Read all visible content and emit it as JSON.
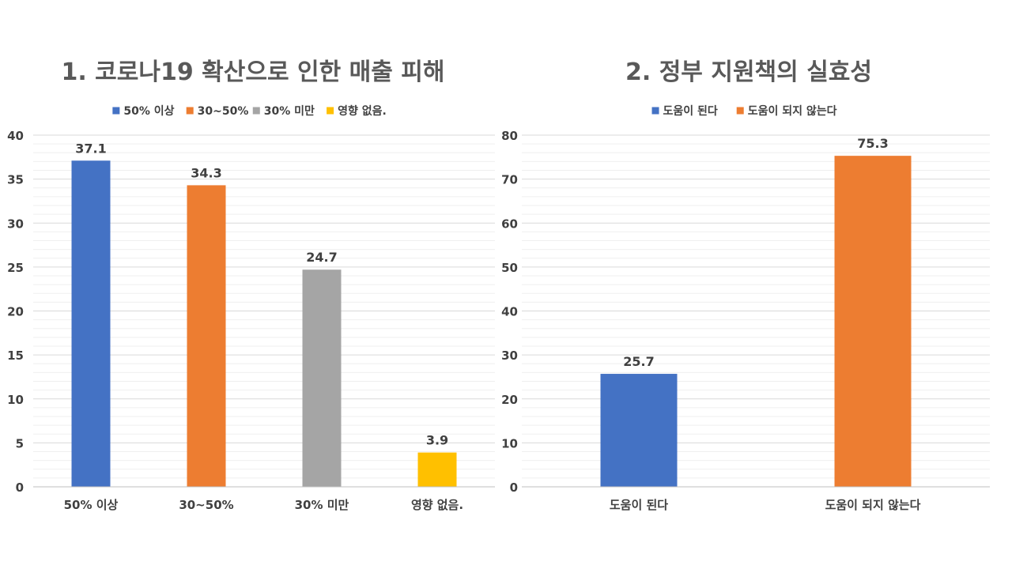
{
  "chart_data": [
    {
      "type": "bar",
      "title": "1. 코로나19 확산으로 인한 매출 피해",
      "categories": [
        "50% 이상",
        "30~50%",
        "30% 미만",
        "영향 없음."
      ],
      "values": [
        37.1,
        34.3,
        24.7,
        3.9
      ],
      "colors": [
        "#4472c4",
        "#ed7d31",
        "#a5a5a5",
        "#ffc000"
      ],
      "legend": [
        "50% 이상",
        "30~50%",
        "30% 미만",
        "영향 없음."
      ],
      "legend_position": "top",
      "ylim": [
        0,
        40
      ],
      "yticks": [
        0,
        5,
        10,
        15,
        20,
        25,
        30,
        35,
        40
      ],
      "ytick_labels": [
        "0",
        "5",
        "10",
        "15",
        "20",
        "25",
        "30",
        "35",
        "40"
      ],
      "data_labels": [
        "37.1",
        "34.3",
        "24.7",
        "3.9"
      ],
      "grid": true
    },
    {
      "type": "bar",
      "title": "2. 정부 지원책의 실효성",
      "categories": [
        "도움이 된다",
        "도움이 되지 않는다"
      ],
      "values": [
        25.7,
        75.3
      ],
      "colors": [
        "#4472c4",
        "#ed7d31"
      ],
      "legend": [
        "도움이 된다",
        "도움이 되지 않는다"
      ],
      "legend_position": "top",
      "ylim": [
        0,
        80
      ],
      "yticks": [
        0,
        10,
        20,
        30,
        40,
        50,
        60,
        70,
        80
      ],
      "ytick_labels": [
        "0",
        "10",
        "20",
        "30",
        "40",
        "50",
        "60",
        "70",
        "80"
      ],
      "data_labels": [
        "25.7",
        "75.3"
      ],
      "grid": true
    }
  ]
}
